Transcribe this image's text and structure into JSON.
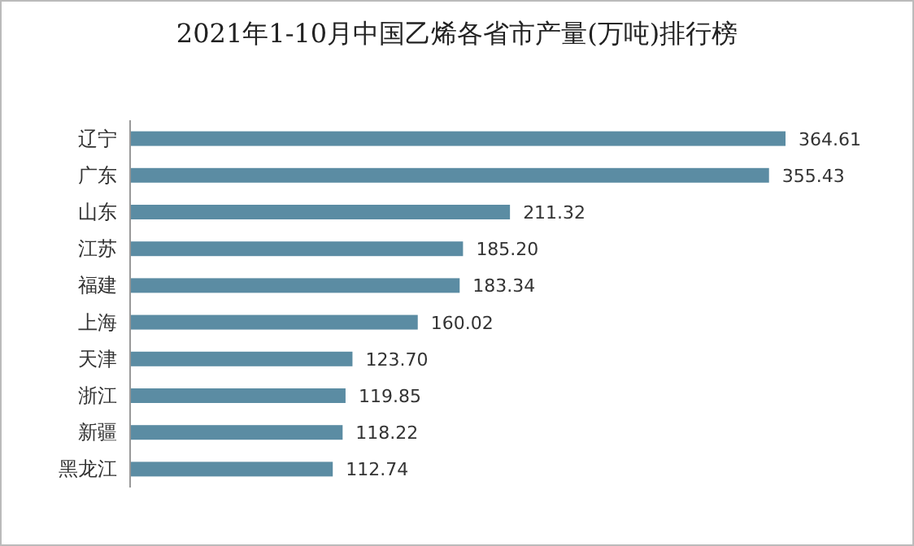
{
  "chart_data": {
    "type": "bar",
    "orientation": "horizontal",
    "title": "2021年1-10月中国乙烯各省市产量(万吨)排行榜",
    "categories": [
      "辽宁",
      "广东",
      "山东",
      "江苏",
      "福建",
      "上海",
      "天津",
      "浙江",
      "新疆",
      "黑龙江"
    ],
    "values": [
      364.61,
      355.43,
      211.32,
      185.2,
      183.34,
      160.02,
      123.7,
      119.85,
      118.22,
      112.74
    ],
    "value_labels": [
      "364.61",
      "355.43",
      "211.32",
      "185.20",
      "183.34",
      "160.02",
      "123.70",
      "119.85",
      "118.22",
      "112.74"
    ],
    "color": "#5b8ca3"
  }
}
